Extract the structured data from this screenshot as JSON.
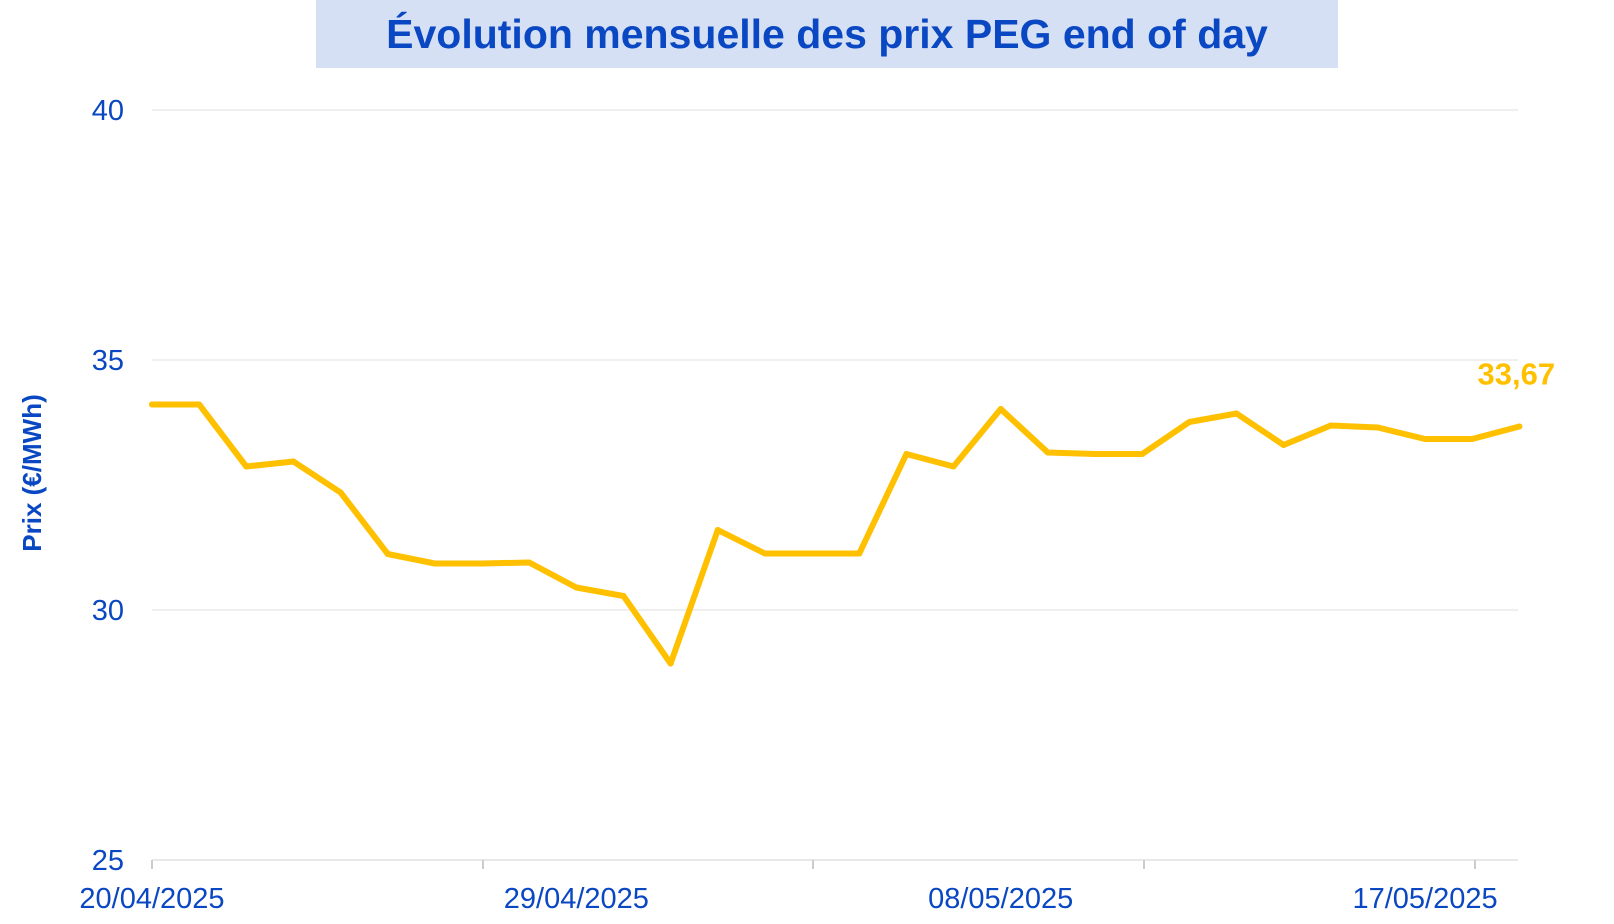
{
  "chart_data": {
    "type": "line",
    "title": "Évolution mensuelle des prix PEG end of day",
    "xlabel": "",
    "ylabel": "Prix (€/MWh)",
    "ylim": [
      25,
      40
    ],
    "yticks": [
      "25",
      "30",
      "35",
      "40"
    ],
    "xticks": [
      "20/04/2025",
      "29/04/2025",
      "08/05/2025",
      "17/05/2025"
    ],
    "grid": true,
    "last_value_label": "33,67",
    "line_color": "#ffc000",
    "text_color": "#0a47c2",
    "series": [
      {
        "x": [
          "20/04/2025",
          "21/04/2025",
          "22/04/2025",
          "23/04/2025",
          "24/04/2025",
          "25/04/2025",
          "26/04/2025",
          "27/04/2025",
          "28/04/2025",
          "29/04/2025",
          "30/04/2025",
          "01/05/2025",
          "02/05/2025",
          "03/05/2025",
          "04/05/2025",
          "05/05/2025",
          "06/05/2025",
          "07/05/2025",
          "08/05/2025",
          "09/05/2025",
          "10/05/2025",
          "11/05/2025",
          "12/05/2025",
          "13/05/2025",
          "14/05/2025",
          "15/05/2025",
          "16/05/2025",
          "17/05/2025",
          "18/05/2025",
          "19/05/2025"
        ],
        "values": [
          34.11,
          34.11,
          32.87,
          32.97,
          32.35,
          31.12,
          30.93,
          30.93,
          30.95,
          30.45,
          30.28,
          28.93,
          31.6,
          31.13,
          31.13,
          31.13,
          33.12,
          32.87,
          34.02,
          33.15,
          33.12,
          33.12,
          33.76,
          33.93,
          33.3,
          33.69,
          33.65,
          33.42,
          33.42,
          33.67
        ]
      }
    ]
  }
}
